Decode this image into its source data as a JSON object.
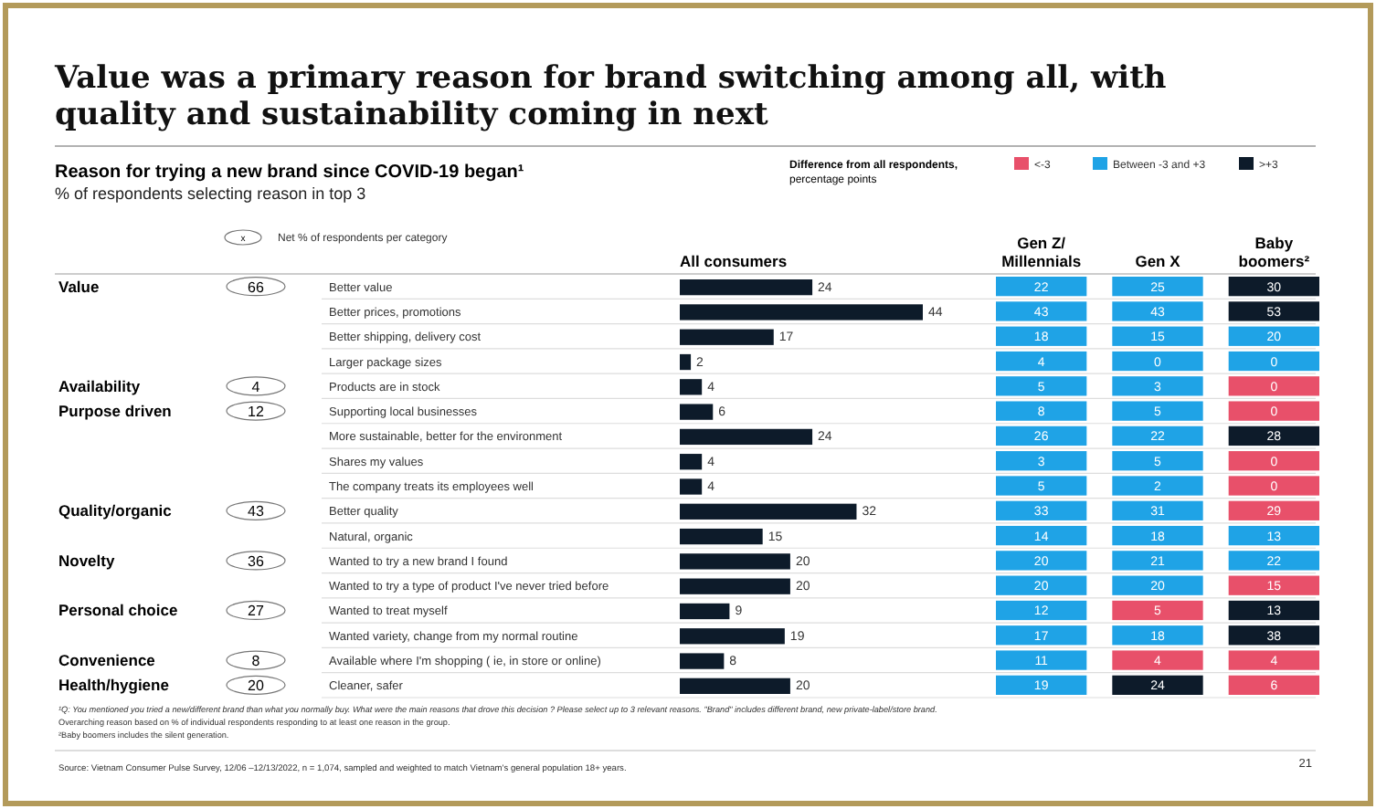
{
  "chart_data": [
    {
      "type": "bar",
      "orientation": "horizontal",
      "title": "Value was a primary reason for brand switching among all, with quality and sustainability coming in next",
      "subtitle": "Reason for trying a new brand since COVID-19 began¹",
      "xlabel": "% of respondents selecting reason in top 3",
      "categories": [
        "Better value",
        "Better prices, promotions",
        "Better shipping, delivery cost",
        "Larger package sizes",
        "Products are in stock",
        "Supporting local businesses",
        "More sustainable, better for the environment",
        "Shares my values",
        "The company treats its employees well",
        "Better quality",
        "Natural, organic",
        "Wanted to try a new brand I found",
        "Wanted to try a type of product I've never tried before",
        "Wanted to treat myself",
        "Wanted variety, change from my normal routine",
        "Available where I'm shopping ( ie, in store or online)",
        "Cleaner, safer"
      ],
      "series": [
        {
          "name": "All consumers",
          "color": "#0d1b2a",
          "values": [
            24,
            44,
            17,
            2,
            4,
            6,
            24,
            4,
            4,
            32,
            15,
            20,
            20,
            9,
            19,
            8,
            20
          ]
        }
      ],
      "data_labels": true,
      "annotations": [
        "x",
        "Net % of respondents per category",
        "Value",
        "66",
        "Availability",
        "4",
        "Purpose driven",
        "12",
        "Quality/organic",
        "43",
        "Novelty",
        "36",
        "Personal choice",
        "27",
        "Convenience",
        "8",
        "Health/hygiene",
        "20",
        "¹Q: You mentioned you tried a new/different brand than what you normally buy. What were the main reasons that drove this decision ? Please select up to 3 relevant reasons. \"Brand\" includes different brand, new private-label/store brand.",
        "Overarching reason based on % of individual respondents responding to at least one reason in the group.",
        "²Baby boomers includes the silent generation.",
        "Source: Vietnam Consumer Pulse Survey, 12/06 –12/13/2022, n = 1,074, sampled and weighted to match Vietnam's general population 18+ years.",
        "21"
      ]
    },
    {
      "type": "heatmap",
      "categories": [
        "Gen Z/ Millennials",
        "Gen X",
        "Baby boomers²"
      ],
      "y_categories": [
        null,
        null,
        null,
        null,
        null,
        null,
        null,
        null,
        null,
        null,
        null,
        null,
        null,
        null,
        null,
        null,
        null
      ],
      "data_labels": true,
      "legend_title": "Difference from all respondents, percentage points",
      "annotations": [
        "<-3",
        "Between -3 and +3",
        ">+3"
      ],
      "cells": [
        [
          22,
          25,
          30
        ],
        [
          43,
          43,
          53
        ],
        [
          18,
          15,
          20
        ],
        [
          4,
          0,
          0
        ],
        [
          5,
          3,
          0
        ],
        [
          8,
          5,
          0
        ],
        [
          26,
          22,
          28
        ],
        [
          3,
          5,
          0
        ],
        [
          5,
          2,
          0
        ],
        [
          33,
          31,
          29
        ],
        [
          14,
          18,
          13
        ],
        [
          20,
          21,
          22
        ],
        [
          20,
          20,
          15
        ],
        [
          12,
          5,
          13
        ],
        [
          17,
          18,
          38
        ],
        [
          11,
          4,
          4
        ],
        [
          19,
          24,
          6
        ]
      ],
      "colors": [
        [
          "#1fa3e6",
          "#1fa3e6",
          "#0d1b2a"
        ],
        [
          "#1fa3e6",
          "#1fa3e6",
          "#0d1b2a"
        ],
        [
          "#1fa3e6",
          "#1fa3e6",
          "#1fa3e6"
        ],
        [
          "#1fa3e6",
          "#1fa3e6",
          "#1fa3e6"
        ],
        [
          "#1fa3e6",
          "#1fa3e6",
          "#e8506a"
        ],
        [
          "#1fa3e6",
          "#1fa3e6",
          "#e8506a"
        ],
        [
          "#1fa3e6",
          "#1fa3e6",
          "#0d1b2a"
        ],
        [
          "#1fa3e6",
          "#1fa3e6",
          "#e8506a"
        ],
        [
          "#1fa3e6",
          "#1fa3e6",
          "#e8506a"
        ],
        [
          "#1fa3e6",
          "#1fa3e6",
          "#e8506a"
        ],
        [
          "#1fa3e6",
          "#1fa3e6",
          "#1fa3e6"
        ],
        [
          "#1fa3e6",
          "#1fa3e6",
          "#1fa3e6"
        ],
        [
          "#1fa3e6",
          "#1fa3e6",
          "#e8506a"
        ],
        [
          "#1fa3e6",
          "#e8506a",
          "#0d1b2a"
        ],
        [
          "#1fa3e6",
          "#1fa3e6",
          "#0d1b2a"
        ],
        [
          "#1fa3e6",
          "#e8506a",
          "#e8506a"
        ],
        [
          "#1fa3e6",
          "#0d1b2a",
          "#e8506a"
        ]
      ]
    }
  ]
}
